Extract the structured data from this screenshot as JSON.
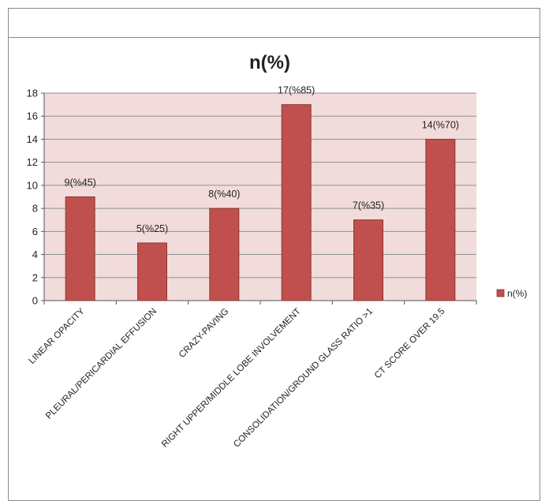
{
  "chart_data": {
    "type": "bar",
    "title": "n(%)",
    "xlabel": "",
    "ylabel": "",
    "ylim": [
      0,
      18
    ],
    "yticks": [
      0,
      2,
      4,
      6,
      8,
      10,
      12,
      14,
      16,
      18
    ],
    "grid": true,
    "legend_position": "right",
    "categories": [
      "LINEAR OPACITY",
      "PLEURAL/PERICARDIAL EFFUSION",
      "CRAZY-PAVING",
      "RIGHT UPPER/MIDDLE LOBE INVOLVEMENT",
      "CONSOLIDATION/GROUND GLASS RATIO >1",
      "CT SCORE OVER 19.5"
    ],
    "series": [
      {
        "name": "n(%)",
        "values": [
          9,
          5,
          8,
          17,
          7,
          14
        ],
        "data_labels": [
          "9(%45)",
          "5(%25)",
          "8(%40)",
          "17(%85)",
          "7(%35)",
          "14(%70)"
        ]
      }
    ],
    "colors": {
      "bar": "#c0504d",
      "bar_edge": "#8c3836",
      "plot_background": "#f2dcdb",
      "grid": "#8f8f8f"
    }
  }
}
